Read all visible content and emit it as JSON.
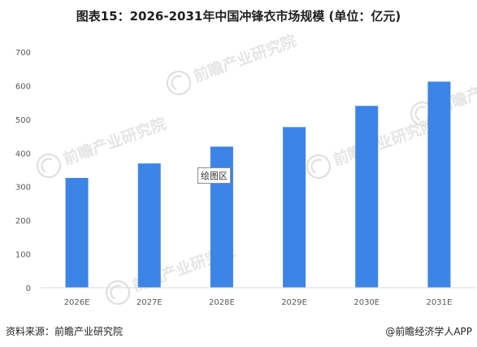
{
  "title": "图表15：2026-2031年中国冲锋衣市场规模 (单位：亿元)",
  "source": "资料来源：前瞻产业研究院",
  "credit": "@前瞻经济学人APP",
  "plot_area_tag": "绘图区",
  "watermark": "前瞻产业研究院",
  "colors": {
    "bar": "#3c84e6",
    "axis": "#d9d9d9",
    "text": "#595959"
  },
  "chart_data": {
    "type": "bar",
    "title": "图表15：2026-2031年中国冲锋衣市场规模 (单位：亿元)",
    "xlabel": "",
    "ylabel": "",
    "categories": [
      "2026E",
      "2027E",
      "2028E",
      "2029E",
      "2030E",
      "2031E"
    ],
    "values": [
      326,
      369,
      419,
      477,
      540,
      612
    ],
    "ylim": [
      0,
      700
    ],
    "yticks": [
      0,
      100,
      200,
      300,
      400,
      500,
      600,
      700
    ],
    "grid": false,
    "legend": "none"
  }
}
